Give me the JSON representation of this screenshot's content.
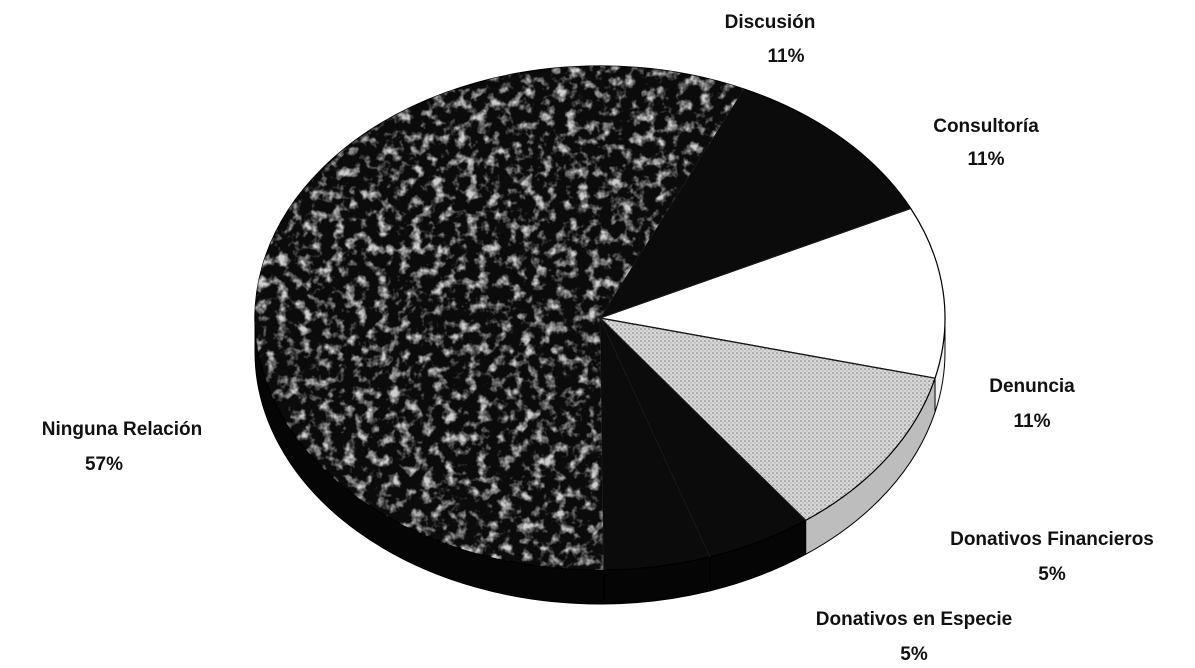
{
  "chart_data": {
    "type": "pie",
    "style": "3d-tilted",
    "title": "",
    "slices": [
      {
        "label": "Ninguna Relación",
        "value": 57,
        "value_label": "57%",
        "fill": "#0b0b0b",
        "pattern": "mottled-gray"
      },
      {
        "label": "Discusión",
        "value": 11,
        "value_label": "11%",
        "fill": "#0b0b0b"
      },
      {
        "label": "Consultoría",
        "value": 11,
        "value_label": "11%",
        "fill": "#ffffff"
      },
      {
        "label": "Denuncia",
        "value": 11,
        "value_label": "11%",
        "fill": "#cfcfcf",
        "pattern": "dotted"
      },
      {
        "label": "Donativos Financieros",
        "value": 5,
        "value_label": "5%",
        "fill": "#0b0b0b"
      },
      {
        "label": "Donativos en Especie",
        "value": 5,
        "value_label": "5%",
        "fill": "#0b0b0b"
      }
    ]
  }
}
